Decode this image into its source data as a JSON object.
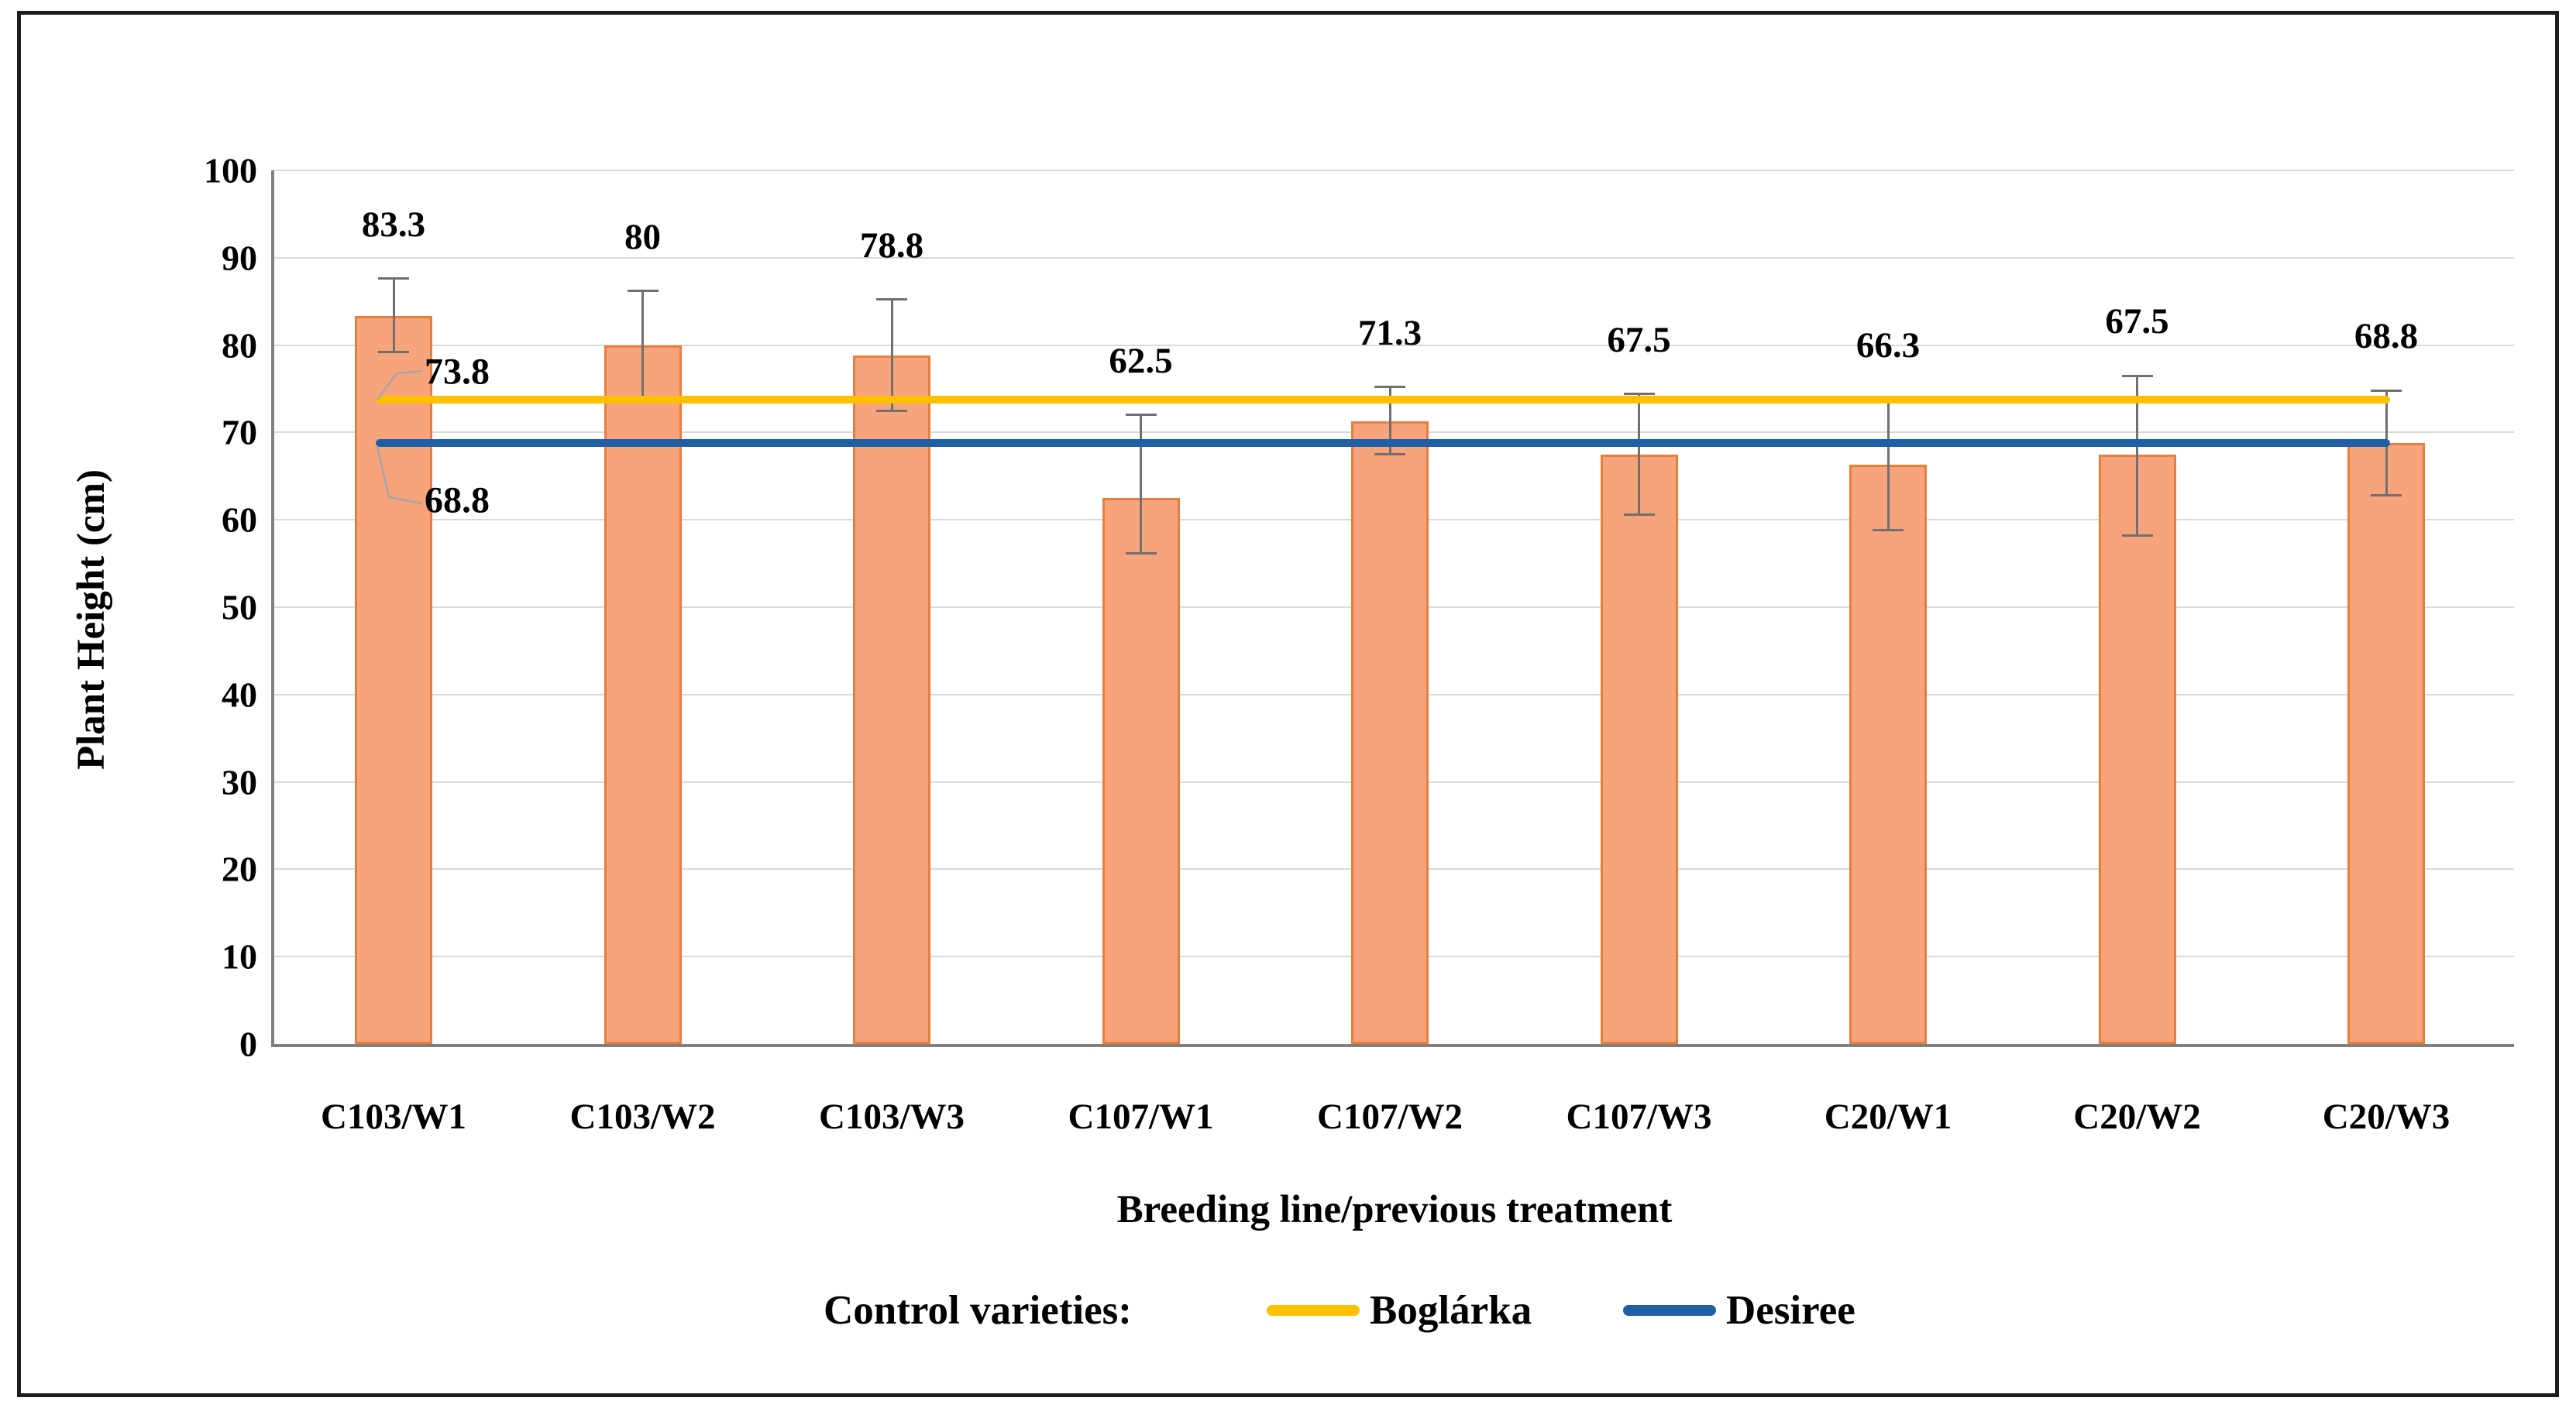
{
  "figure": {
    "y_axis": {
      "title": "Plant Height (cm)",
      "tick_labels": [
        "0",
        "10",
        "20",
        "30",
        "40",
        "50",
        "60",
        "70",
        "80",
        "90",
        "100"
      ]
    },
    "x_axis": {
      "title": "Breeding line/previous treatment"
    },
    "legend": {
      "prefix": "Control varieties:",
      "entries": [
        {
          "label": "Boglárka",
          "color": "#FFC000"
        },
        {
          "label": "Desiree",
          "color": "#1F5FA5"
        }
      ]
    }
  },
  "chart_data": {
    "type": "bar",
    "title": "",
    "xlabel": "Breeding line/previous treatment",
    "ylabel": "Plant Height (cm)",
    "ylim": [
      0,
      100
    ],
    "grid": true,
    "categories": [
      "C103/W1",
      "C103/W2",
      "C103/W3",
      "C107/W1",
      "C107/W2",
      "C107/W3",
      "C20/W1",
      "C20/W2",
      "C20/W3"
    ],
    "values": [
      83.3,
      80,
      78.8,
      62.5,
      71.3,
      67.5,
      66.3,
      67.5,
      68.8
    ],
    "value_labels": [
      "83.3",
      "80",
      "78.8",
      "62.5",
      "71.3",
      "67.5",
      "66.3",
      "67.5",
      "68.8"
    ],
    "error_top": [
      87.6,
      86.2,
      85.2,
      72.0,
      75.2,
      74.4,
      73.8,
      76.5,
      74.8
    ],
    "error_bottom": [
      79.2,
      73.6,
      72.5,
      56.2,
      67.5,
      60.6,
      58.8,
      58.2,
      62.8
    ],
    "bar_color": "#F7A37C",
    "bar_border_color": "#E87E3C",
    "gridline_color": "#D9D9D9",
    "axis_color": "#808080",
    "error_bar_color": "#707070",
    "reference_lines": [
      {
        "name": "Boglárka",
        "value": 73.8,
        "label": "73.8",
        "color": "#FFC000"
      },
      {
        "name": "Desiree",
        "value": 68.8,
        "label": "68.8",
        "color": "#1F5FA5"
      }
    ],
    "legend_position": "bottom"
  }
}
